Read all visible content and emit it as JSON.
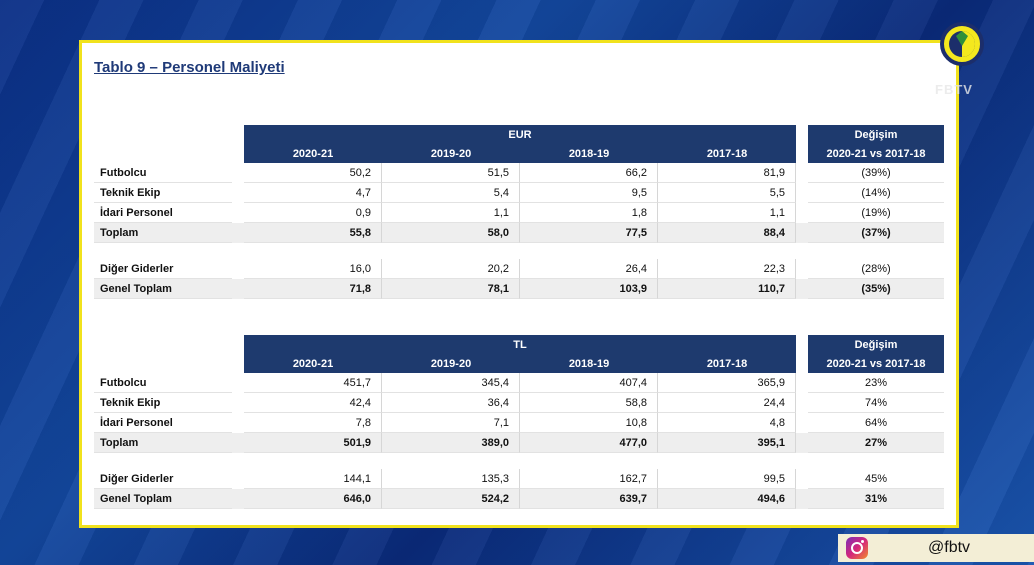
{
  "title": "Tablo 9 – Personel Maliyeti",
  "watermark": "FBTV",
  "instagram_handle": "@fbtv",
  "colors": {
    "header": "#1e3a6e",
    "frame": "#f1e21c",
    "background": "#13489f"
  },
  "tables": [
    {
      "currency": "EUR",
      "change_header": "Değişim",
      "change_sub": "2020-21 vs 2017-18",
      "years": [
        "2020-21",
        "2019-20",
        "2018-19",
        "2017-18"
      ],
      "rows": [
        {
          "label": "Futbolcu",
          "values": [
            "50,2",
            "51,5",
            "66,2",
            "81,9"
          ],
          "change": "(39%)"
        },
        {
          "label": "Teknik Ekip",
          "values": [
            "4,7",
            "5,4",
            "9,5",
            "5,5"
          ],
          "change": "(14%)"
        },
        {
          "label": "İdari Personel",
          "values": [
            "0,9",
            "1,1",
            "1,8",
            "1,1"
          ],
          "change": "(19%)"
        },
        {
          "label": "Toplam",
          "values": [
            "55,8",
            "58,0",
            "77,5",
            "88,4"
          ],
          "change": "(37%)"
        },
        {
          "label": "Diğer Giderler",
          "values": [
            "16,0",
            "20,2",
            "26,4",
            "22,3"
          ],
          "change": "(28%)"
        },
        {
          "label": "Genel Toplam",
          "values": [
            "71,8",
            "78,1",
            "103,9",
            "110,7"
          ],
          "change": "(35%)"
        }
      ]
    },
    {
      "currency": "TL",
      "change_header": "Değişim",
      "change_sub": "2020-21 vs 2017-18",
      "years": [
        "2020-21",
        "2019-20",
        "2018-19",
        "2017-18"
      ],
      "rows": [
        {
          "label": "Futbolcu",
          "values": [
            "451,7",
            "345,4",
            "407,4",
            "365,9"
          ],
          "change": "23%"
        },
        {
          "label": "Teknik Ekip",
          "values": [
            "42,4",
            "36,4",
            "58,8",
            "24,4"
          ],
          "change": "74%"
        },
        {
          "label": "İdari Personel",
          "values": [
            "7,8",
            "7,1",
            "10,8",
            "4,8"
          ],
          "change": "64%"
        },
        {
          "label": "Toplam",
          "values": [
            "501,9",
            "389,0",
            "477,0",
            "395,1"
          ],
          "change": "27%"
        },
        {
          "label": "Diğer Giderler",
          "values": [
            "144,1",
            "135,3",
            "162,7",
            "99,5"
          ],
          "change": "45%"
        },
        {
          "label": "Genel Toplam",
          "values": [
            "646,0",
            "524,2",
            "639,7",
            "494,6"
          ],
          "change": "31%"
        }
      ]
    }
  ]
}
